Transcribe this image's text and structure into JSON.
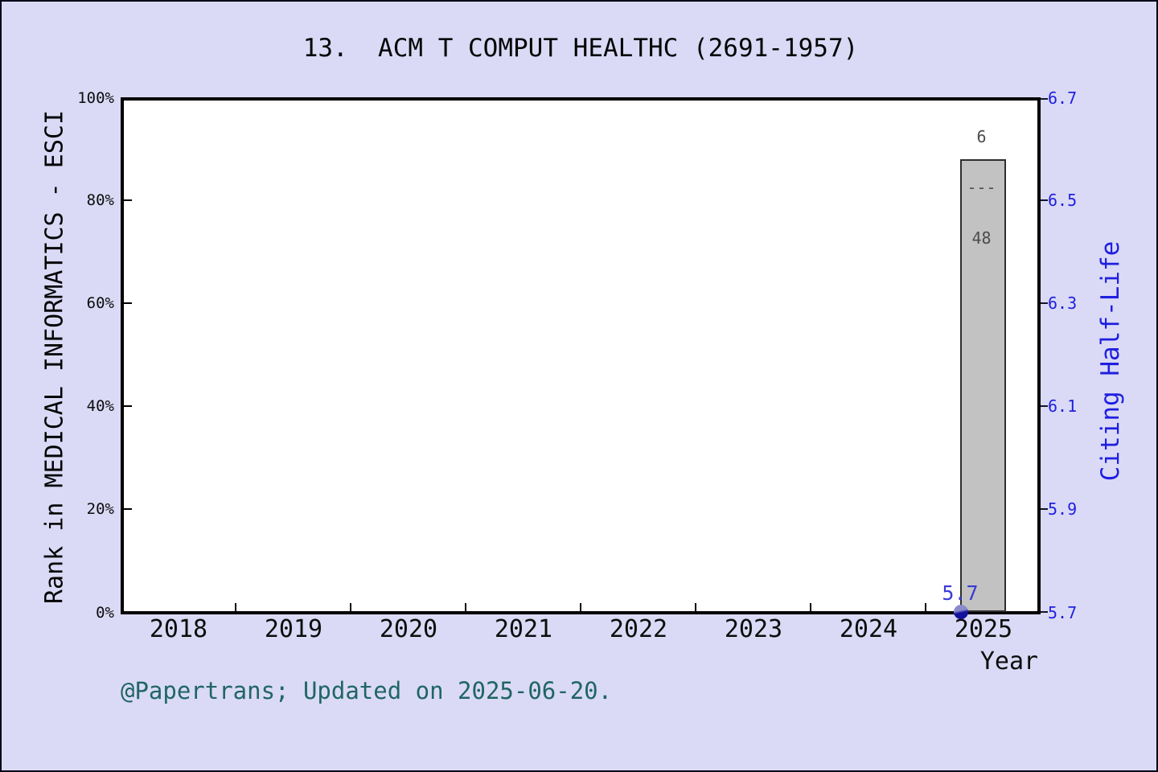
{
  "page": {
    "background_color": "#dadaf6",
    "plot_background": "#ffffff",
    "accent_blue": "#1f1fe0",
    "caption_color": "#206565",
    "bar_color": "#c2c2c2",
    "dot_color": "#12129c"
  },
  "chart_data": {
    "type": "bar",
    "title": "13.  ACM T COMPUT HEALTHC (2691-1957)",
    "caption": "@Papertrans; Updated on 2025-06-20.",
    "xlabel": "Year",
    "categories": [
      "2018",
      "2019",
      "2020",
      "2021",
      "2022",
      "2023",
      "2024",
      "2025"
    ],
    "grid": false,
    "left_axis": {
      "label": "Rank in MEDICAL INFORMATICS - ESCI",
      "range": [
        0,
        100
      ],
      "unit": "%",
      "ticks": [
        "0%",
        "20%",
        "40%",
        "60%",
        "80%",
        "100%"
      ]
    },
    "right_axis": {
      "label": "Citing Half-Life",
      "range": [
        5.7,
        6.7
      ],
      "ticks": [
        "5.7",
        "5.9",
        "6.1",
        "6.3",
        "6.5",
        "6.7"
      ]
    },
    "series": [
      {
        "name": "Rank in MEDICAL INFORMATICS - ESCI",
        "type": "bar",
        "axis": "left",
        "values": [
          null,
          null,
          null,
          null,
          null,
          null,
          null,
          87.5
        ],
        "points": [
          {
            "x": "2025",
            "value_pct": 87.5,
            "rank": "6",
            "divider": "---",
            "total": "48"
          }
        ]
      },
      {
        "name": "Citing Half-Life",
        "type": "scatter",
        "axis": "right",
        "values": [
          null,
          null,
          null,
          null,
          null,
          null,
          null,
          5.7
        ],
        "points": [
          {
            "x": "2025",
            "value": 5.7,
            "label": "5.7"
          }
        ]
      }
    ]
  }
}
